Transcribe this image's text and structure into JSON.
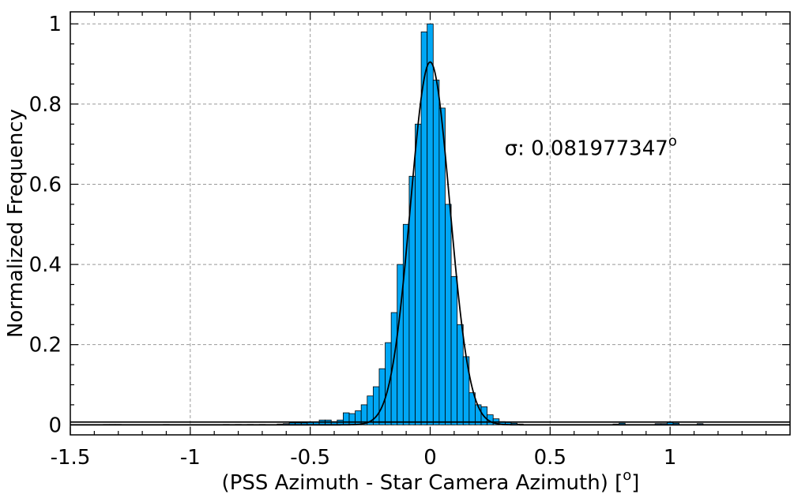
{
  "chart_data": {
    "type": "bar",
    "subtype": "histogram",
    "title": "",
    "xlabel": "(PSS Azimuth - Star Camera Azimuth) [",
    "xlabel_deg": "o",
    "xlabel_close": "]",
    "ylabel": "Normalized Frequency",
    "xlim": [
      -1.5,
      1.5
    ],
    "ylim": [
      -0.025,
      1.03
    ],
    "grid": true,
    "bar_color": "#00a7f5",
    "edge_color": "#000000",
    "x_ticks": [
      -1.5,
      -1,
      -0.5,
      0,
      0.5,
      1
    ],
    "x_tick_labels": [
      "-1.5",
      "-1",
      "-0.5",
      "0",
      "0.5",
      "1"
    ],
    "y_ticks": [
      0,
      0.2,
      0.4,
      0.6,
      0.8,
      1
    ],
    "y_tick_labels": [
      "0",
      "0.2",
      "0.4",
      "0.6",
      "0.8",
      "1"
    ],
    "bin_width": 0.025,
    "bins": [
      [
        -1.35,
        0.001
      ],
      [
        -1.325,
        0.001
      ],
      [
        -1.3,
        0.001
      ],
      [
        -1.1,
        0.001
      ],
      [
        -0.85,
        0.001
      ],
      [
        -0.8,
        0.001
      ],
      [
        -0.75,
        0.001
      ],
      [
        -0.7,
        0.001
      ],
      [
        -0.625,
        0.002
      ],
      [
        -0.6,
        0.003
      ],
      [
        -0.575,
        0.005
      ],
      [
        -0.55,
        0.005
      ],
      [
        -0.525,
        0.005
      ],
      [
        -0.5,
        0.006
      ],
      [
        -0.475,
        0.007
      ],
      [
        -0.45,
        0.012
      ],
      [
        -0.425,
        0.012
      ],
      [
        -0.4,
        0.008
      ],
      [
        -0.375,
        0.012
      ],
      [
        -0.35,
        0.03
      ],
      [
        -0.325,
        0.028
      ],
      [
        -0.3,
        0.035
      ],
      [
        -0.275,
        0.05
      ],
      [
        -0.25,
        0.072
      ],
      [
        -0.225,
        0.095
      ],
      [
        -0.2,
        0.14
      ],
      [
        -0.175,
        0.205
      ],
      [
        -0.15,
        0.28
      ],
      [
        -0.125,
        0.4
      ],
      [
        -0.1,
        0.5
      ],
      [
        -0.075,
        0.62
      ],
      [
        -0.05,
        0.75
      ],
      [
        -0.025,
        0.98
      ],
      [
        0.0,
        1.0
      ],
      [
        0.025,
        0.86
      ],
      [
        0.05,
        0.79
      ],
      [
        0.075,
        0.55
      ],
      [
        0.1,
        0.37
      ],
      [
        0.125,
        0.25
      ],
      [
        0.15,
        0.17
      ],
      [
        0.175,
        0.08
      ],
      [
        0.2,
        0.05
      ],
      [
        0.225,
        0.045
      ],
      [
        0.25,
        0.025
      ],
      [
        0.275,
        0.015
      ],
      [
        0.3,
        0.008
      ],
      [
        0.325,
        0.006
      ],
      [
        0.35,
        0.004
      ],
      [
        0.375,
        0.002
      ],
      [
        0.775,
        0.002
      ],
      [
        0.8,
        0.004
      ],
      [
        0.95,
        0.003
      ],
      [
        0.975,
        0.003
      ],
      [
        1.0,
        0.006
      ],
      [
        1.025,
        0.004
      ],
      [
        1.125,
        0.003
      ]
    ],
    "fit_curve": {
      "type": "gaussian",
      "amplitude": 0.905,
      "mean": 0.0,
      "sigma": 0.082,
      "offset": 0.0
    },
    "baseline_y": 0.007,
    "annotation": {
      "text": "σ: 0.081977347",
      "sup": "o",
      "x": 0.31,
      "y": 0.69
    }
  }
}
